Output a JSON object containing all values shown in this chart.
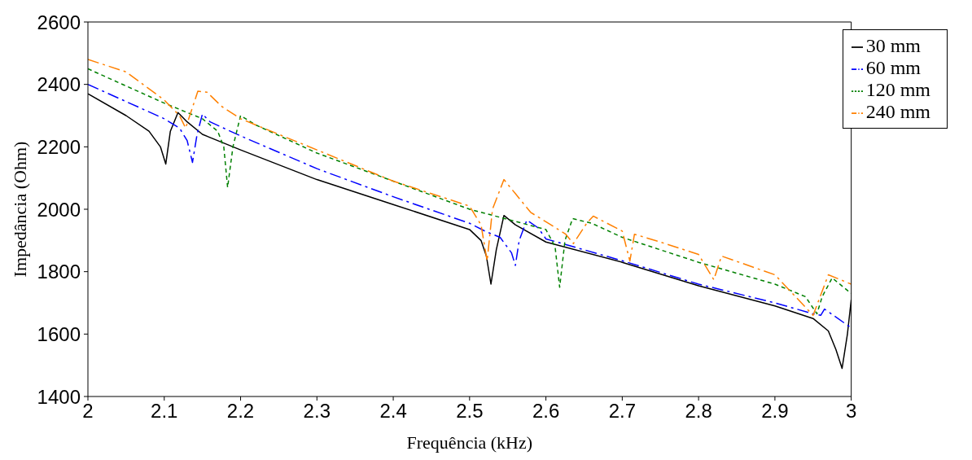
{
  "chart_data": {
    "type": "line",
    "xlabel": "Frequência (kHz)",
    "ylabel": "Impedância (Ohm)",
    "xlim": [
      2,
      3
    ],
    "xticks": [
      2,
      2.1,
      2.2,
      2.3,
      2.4,
      2.5,
      2.6,
      2.7,
      2.8,
      2.9,
      3
    ],
    "ylim": [
      1400,
      2600
    ],
    "yticks": [
      1400,
      1600,
      1800,
      2000,
      2200,
      2400,
      2600
    ],
    "grid": false,
    "legend": "top right",
    "marker": "none",
    "series": [
      {
        "name": "30 mm",
        "color": "#000000",
        "line_style": "solid",
        "x": [
          2,
          2.05,
          2.08,
          2.095,
          2.102,
          2.108,
          2.118,
          2.13,
          2.15,
          2.2,
          2.3,
          2.4,
          2.5,
          2.515,
          2.522,
          2.528,
          2.535,
          2.545,
          2.56,
          2.6,
          2.7,
          2.8,
          2.9,
          2.95,
          2.97,
          2.98,
          2.988,
          2.995,
          3
        ],
        "values": [
          2370,
          2300,
          2250,
          2200,
          2145,
          2250,
          2310,
          2280,
          2240,
          2190,
          2095,
          2015,
          1935,
          1900,
          1850,
          1760,
          1870,
          1980,
          1950,
          1895,
          1830,
          1755,
          1690,
          1650,
          1610,
          1550,
          1490,
          1600,
          1710
        ]
      },
      {
        "name": "60 mm",
        "color": "#0000ff",
        "line_style": "dashed",
        "x": [
          2,
          2.1,
          2.12,
          2.13,
          2.137,
          2.143,
          2.15,
          2.16,
          2.2,
          2.3,
          2.4,
          2.5,
          2.52,
          2.54,
          2.555,
          2.56,
          2.565,
          2.575,
          2.59,
          2.6,
          2.7,
          2.8,
          2.9,
          2.95,
          2.96,
          2.965,
          3
        ],
        "values": [
          2400,
          2290,
          2260,
          2220,
          2150,
          2240,
          2305,
          2280,
          2235,
          2130,
          2040,
          1955,
          1930,
          1910,
          1860,
          1820,
          1900,
          1965,
          1940,
          1905,
          1835,
          1760,
          1700,
          1665,
          1660,
          1680,
          1620
        ]
      },
      {
        "name": "120 mm",
        "color": "#008000",
        "line_style": "dotted",
        "x": [
          2,
          2.1,
          2.15,
          2.17,
          2.178,
          2.183,
          2.19,
          2.2,
          2.22,
          2.3,
          2.4,
          2.5,
          2.6,
          2.612,
          2.618,
          2.625,
          2.635,
          2.66,
          2.7,
          2.8,
          2.9,
          2.94,
          2.955,
          2.962,
          2.975,
          3
        ],
        "values": [
          2450,
          2340,
          2290,
          2250,
          2200,
          2070,
          2200,
          2300,
          2270,
          2180,
          2090,
          2000,
          1935,
          1880,
          1750,
          1900,
          1970,
          1955,
          1910,
          1830,
          1760,
          1720,
          1665,
          1720,
          1780,
          1730
        ]
      },
      {
        "name": "240 mm",
        "color": "#ff8000",
        "line_style": "dashed",
        "x": [
          2,
          2.05,
          2.1,
          2.12,
          2.128,
          2.144,
          2.156,
          2.175,
          2.2,
          2.3,
          2.4,
          2.5,
          2.515,
          2.523,
          2.53,
          2.545,
          2.56,
          2.58,
          2.6,
          2.626,
          2.636,
          2.654,
          2.662,
          2.7,
          2.71,
          2.716,
          2.75,
          2.8,
          2.82,
          2.83,
          2.9,
          2.95,
          2.97,
          3
        ],
        "values": [
          2480,
          2440,
          2350,
          2300,
          2260,
          2378,
          2375,
          2330,
          2290,
          2190,
          2090,
          2010,
          1950,
          1834,
          2000,
          2095,
          2050,
          1990,
          1960,
          1920,
          1890,
          1957,
          1978,
          1930,
          1834,
          1920,
          1895,
          1855,
          1774,
          1850,
          1790,
          1660,
          1790,
          1760
        ]
      }
    ]
  }
}
